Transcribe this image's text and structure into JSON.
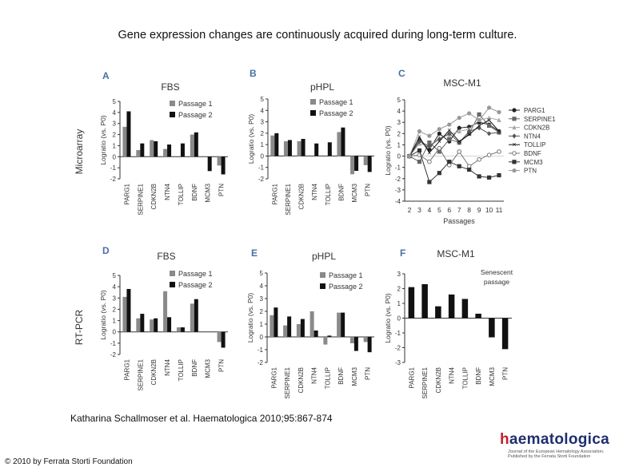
{
  "slide": {
    "title": "Gene expression changes are continuously acquired during long-term culture.",
    "citation": "Katharina Schallmoser et al. Haematologica 2010;95:867-874",
    "copyright": "© 2010 by Ferrata Storti Foundation",
    "logo_word_h": "h",
    "logo_word_rest": "aematologica",
    "logo_subtitle": "Journal of the European Hematology Association. Published by the Ferrata Storti Foundation"
  },
  "figure": {
    "row_labels": [
      "Microarray",
      "RT-PCR"
    ],
    "colors": {
      "passage1": "#8a8a8a",
      "passage2": "#111111",
      "axis": "#333333",
      "panel_letter": "#4a6fa5"
    }
  },
  "chart_data": [
    {
      "panel": "A",
      "type": "bar",
      "title": "FBS",
      "categories": [
        "PARG1",
        "SERPINE1",
        "CDKN2B",
        "NTN4",
        "TOLLIP",
        "BDNF",
        "MCM3",
        "PTN"
      ],
      "series": [
        {
          "name": "Passage 1",
          "values": [
            2.7,
            0.6,
            1.5,
            0.7,
            0,
            2.0,
            0,
            -0.8
          ]
        },
        {
          "name": "Passage 2",
          "values": [
            4.1,
            1.2,
            1.4,
            1.1,
            1.2,
            2.2,
            -1.3,
            -1.6
          ]
        }
      ],
      "ylabel": "Logratio (vs. P0)",
      "ylim": [
        -2,
        5
      ],
      "yticks": [
        -2,
        -1,
        0,
        1,
        2,
        3,
        4,
        5
      ]
    },
    {
      "panel": "B",
      "type": "bar",
      "title": "pHPL",
      "categories": [
        "PARG1",
        "SERPINE1",
        "CDKN2B",
        "NTN4",
        "TOLLIP",
        "BDNF",
        "MCM3",
        "PTN"
      ],
      "series": [
        {
          "name": "Passage 1",
          "values": [
            1.8,
            1.3,
            1.3,
            0,
            0,
            2.1,
            -1.6,
            -0.8
          ]
        },
        {
          "name": "Passage 2",
          "values": [
            2.0,
            1.4,
            1.5,
            1.1,
            1.2,
            2.5,
            -1.3,
            -1.4
          ]
        }
      ],
      "ylabel": "Logratio (vs. P0)",
      "ylim": [
        -2,
        5
      ],
      "yticks": [
        -2,
        -1,
        0,
        1,
        2,
        3,
        4,
        5
      ]
    },
    {
      "panel": "C",
      "type": "line",
      "title": "MSC-M1",
      "x": [
        2,
        3,
        4,
        5,
        6,
        7,
        8,
        9,
        10,
        11
      ],
      "series": [
        {
          "name": "PARG1",
          "values": [
            0,
            1.4,
            0.6,
            2.0,
            1.3,
            2.5,
            2.6,
            3.0,
            2.8,
            2.2
          ]
        },
        {
          "name": "SERPINE1",
          "values": [
            0,
            -0.5,
            1.2,
            0.4,
            1.5,
            1.2,
            2.0,
            3.7,
            2.7,
            2.1
          ]
        },
        {
          "name": "CDKN2B",
          "values": [
            0,
            1.1,
            0.9,
            1.6,
            1.9,
            2.2,
            2.4,
            3.2,
            3.4,
            3.2
          ]
        },
        {
          "name": "NTN4",
          "values": [
            0,
            1.3,
            0.9,
            1.5,
            2.0,
            1.2,
            2.2,
            2.5,
            2.0,
            2.1
          ]
        },
        {
          "name": "TOLLIP",
          "values": [
            0,
            1.7,
            0.3,
            1.3,
            2.3,
            1.3,
            1.9,
            2.7,
            3.2,
            2.2
          ]
        },
        {
          "name": "BDNF",
          "values": [
            0,
            0.1,
            -0.5,
            0.7,
            -0.8,
            0.4,
            -0.9,
            -0.3,
            0.1,
            0.4
          ]
        },
        {
          "name": "MCM3",
          "values": [
            0,
            0.5,
            -2.3,
            -1.5,
            -0.5,
            -0.9,
            -1.2,
            -1.8,
            -1.9,
            -1.7
          ]
        },
        {
          "name": "PTN",
          "values": [
            0,
            2.2,
            1.8,
            2.4,
            2.8,
            3.4,
            3.8,
            3.2,
            4.3,
            3.9
          ]
        }
      ],
      "xlabel": "Passages",
      "ylabel": "Logratio (vs. P0)",
      "ylim": [
        -4,
        5
      ],
      "yticks": [
        -4,
        -3,
        -2,
        -1,
        0,
        1,
        2,
        3,
        4,
        5
      ]
    },
    {
      "panel": "D",
      "type": "bar",
      "title": "FBS",
      "categories": [
        "PARG1",
        "SERPINE1",
        "CDKN2B",
        "NTN4",
        "TOLLIP",
        "BDNF",
        "MCM3",
        "PTN"
      ],
      "series": [
        {
          "name": "Passage 1",
          "values": [
            3.1,
            1.2,
            1.1,
            3.6,
            0.4,
            2.5,
            0,
            -0.9
          ]
        },
        {
          "name": "Passage 2",
          "values": [
            3.8,
            1.6,
            1.2,
            1.3,
            0.4,
            2.9,
            0,
            -1.4
          ]
        }
      ],
      "ylabel": "Logratio (vs. P0)",
      "ylim": [
        -2,
        5
      ],
      "yticks": [
        -2,
        -1,
        0,
        1,
        2,
        3,
        4,
        5
      ]
    },
    {
      "panel": "E",
      "type": "bar",
      "title": "pHPL",
      "categories": [
        "PARG1",
        "SERPINE1",
        "CDKN2B",
        "NTN4",
        "TOLLIP",
        "BDNF",
        "MCM3",
        "PTN"
      ],
      "series": [
        {
          "name": "Passage 1",
          "values": [
            1.7,
            0.9,
            1.0,
            2.0,
            -0.6,
            1.9,
            -0.5,
            -0.4
          ]
        },
        {
          "name": "Passage 2",
          "values": [
            2.3,
            1.6,
            1.4,
            0.5,
            0.1,
            1.9,
            -1.1,
            -1.2
          ]
        }
      ],
      "ylabel": "Logratio (vs. P0)",
      "ylim": [
        -2,
        5
      ],
      "yticks": [
        -2,
        -1,
        0,
        1,
        2,
        3,
        4,
        5
      ]
    },
    {
      "panel": "F",
      "type": "bar",
      "title": "MSC-M1",
      "annotation": "Senescent passage",
      "categories": [
        "PARG1",
        "SERPINE1",
        "CDKN2B",
        "NTN4",
        "TOLLIP",
        "BDNF",
        "MCM3",
        "PTN"
      ],
      "series": [
        {
          "name": "Senescent passage",
          "values": [
            2.1,
            2.3,
            0.8,
            1.6,
            1.3,
            0.3,
            -1.3,
            -2.1
          ]
        }
      ],
      "ylabel": "Logratio (vs. P0)",
      "ylim": [
        -3,
        3
      ],
      "yticks": [
        -3,
        -2,
        -1,
        0,
        1,
        2,
        3
      ]
    }
  ]
}
